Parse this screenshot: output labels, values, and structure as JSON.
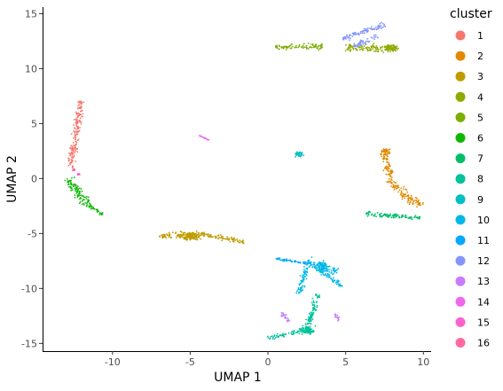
{
  "chart_data": {
    "type": "scatter",
    "xlabel": "UMAP 1",
    "ylabel": "UMAP 2",
    "xlim": [
      -14.5,
      10.5
    ],
    "ylim": [
      -15.7,
      15.6
    ],
    "x_ticks": [
      -10,
      -5,
      0,
      5,
      10
    ],
    "y_ticks": [
      -15,
      -10,
      -5,
      0,
      5,
      10,
      15
    ],
    "grid": false,
    "legend": {
      "title": "cluster",
      "placement": "right",
      "entries": [
        "1",
        "2",
        "3",
        "4",
        "5",
        "6",
        "7",
        "8",
        "9",
        "10",
        "11",
        "12",
        "13",
        "14",
        "15",
        "16"
      ]
    },
    "series": [
      {
        "label": "1",
        "color": "#F8766D",
        "segments": [
          [
            -12.7,
            1.0,
            -12.0,
            7.1,
            0.35
          ]
        ],
        "blobs": []
      },
      {
        "label": "2",
        "color": "#E18A00",
        "segments": [
          [
            7.5,
            2.3,
            8.0,
            -0.5,
            0.4
          ],
          [
            8.0,
            -0.5,
            9.8,
            -2.5,
            0.5
          ]
        ],
        "blobs": [
          [
            7.6,
            2.5,
            0.4,
            0.4
          ]
        ]
      },
      {
        "label": "3",
        "color": "#BE9C00",
        "segments": [
          [
            -7.0,
            -5.3,
            -4.5,
            -5.0,
            0.4
          ],
          [
            -4.5,
            -5.0,
            -1.5,
            -5.8,
            0.3
          ]
        ],
        "blobs": [
          [
            -5.0,
            -5.3,
            0.8,
            0.5
          ]
        ]
      },
      {
        "label": "4",
        "color": "#8CAB00",
        "segments": [
          [
            5.0,
            11.9,
            8.4,
            11.8,
            0.5
          ]
        ],
        "blobs": [
          [
            7.9,
            11.9,
            0.5,
            0.5
          ]
        ]
      },
      {
        "label": "5",
        "color": "#7CAE00",
        "segments": [
          [
            0.5,
            12.0,
            3.5,
            12.0,
            0.35
          ]
        ],
        "blobs": []
      },
      {
        "label": "6",
        "color": "#0CB702",
        "segments": [
          [
            -12.9,
            0.0,
            -11.5,
            -2.5,
            0.5
          ],
          [
            -11.5,
            -2.5,
            -10.6,
            -3.3,
            0.2
          ]
        ],
        "blobs": []
      },
      {
        "label": "7",
        "color": "#00BE67",
        "segments": [
          [
            6.3,
            -3.2,
            9.8,
            -3.6,
            0.3
          ]
        ],
        "blobs": []
      },
      {
        "label": "8",
        "color": "#00C19A",
        "segments": [
          [
            0.0,
            -14.5,
            2.5,
            -13.8,
            0.25
          ],
          [
            2.5,
            -13.8,
            3.2,
            -10.5,
            0.3
          ]
        ],
        "blobs": [
          [
            2.5,
            -13.8,
            0.6,
            0.5
          ]
        ]
      },
      {
        "label": "9",
        "color": "#00BFC4",
        "segments": [],
        "blobs": [
          [
            2.0,
            2.2,
            0.4,
            0.35
          ]
        ]
      },
      {
        "label": "10",
        "color": "#00B8E7",
        "segments": [
          [
            2.5,
            -7.5,
            4.5,
            -8.5,
            0.5
          ],
          [
            3.0,
            -8.0,
            4.8,
            -9.8,
            0.3
          ],
          [
            2.5,
            -8.0,
            2.0,
            -10.5,
            0.3
          ]
        ],
        "blobs": [
          [
            3.5,
            -8.0,
            0.5,
            0.6
          ]
        ]
      },
      {
        "label": "11",
        "color": "#00A9FF",
        "segments": [
          [
            0.5,
            -7.3,
            3.0,
            -7.8,
            0.15
          ]
        ],
        "blobs": []
      },
      {
        "label": "12",
        "color": "#8494FF",
        "segments": [
          [
            4.8,
            12.7,
            7.5,
            14.0,
            0.35
          ],
          [
            5.5,
            12.0,
            7.0,
            13.0,
            0.3
          ]
        ],
        "blobs": []
      },
      {
        "label": "13",
        "color": "#C77CFF",
        "segments": [
          [
            0.9,
            -12.2,
            1.3,
            -13.0,
            0.25
          ],
          [
            4.3,
            -12.3,
            4.6,
            -13.0,
            0.2
          ]
        ],
        "blobs": []
      },
      {
        "label": "14",
        "color": "#ED68ED",
        "segments": [
          [
            -4.4,
            3.9,
            -3.8,
            3.5,
            0.05
          ]
        ],
        "blobs": []
      },
      {
        "label": "15",
        "color": "#FF61CC",
        "segments": [],
        "blobs": [
          [
            -12.2,
            0.4,
            0.12,
            0.12
          ]
        ]
      },
      {
        "label": "16",
        "color": "#FF68A1",
        "segments": [],
        "blobs": [
          [
            -12.5,
            0.8,
            0.12,
            0.12
          ]
        ]
      }
    ]
  }
}
